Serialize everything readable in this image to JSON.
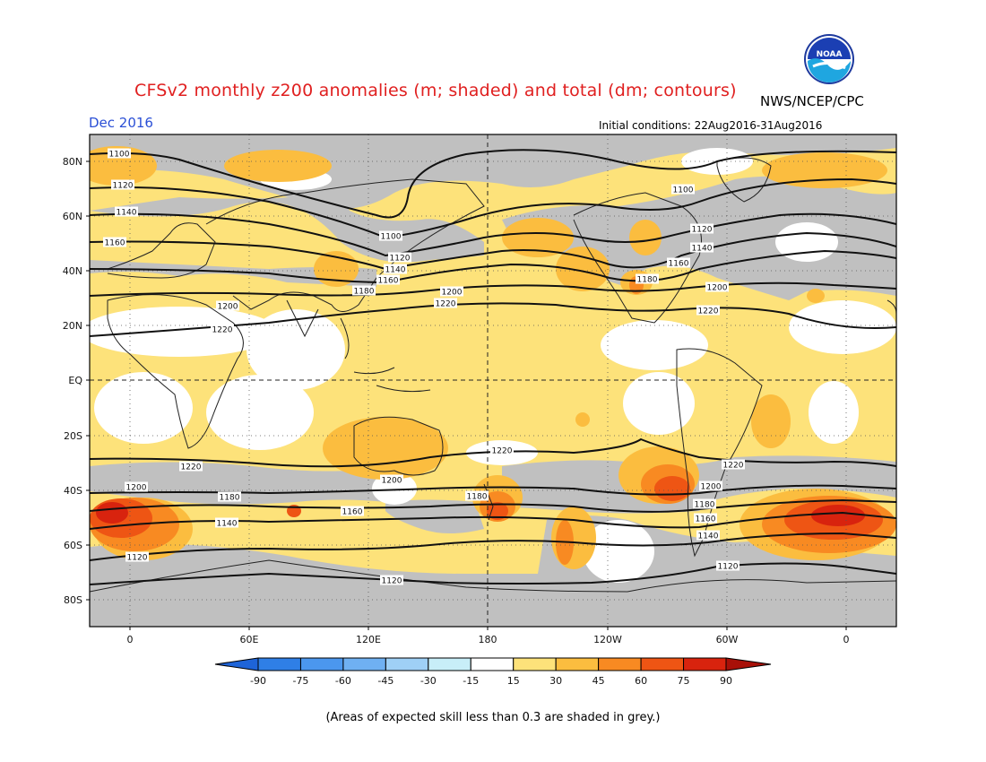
{
  "header": {
    "title": "CFSv2 monthly z200 anomalies (m; shaded) and total (dm; contours)",
    "agency": "NWS/NCEP/CPC",
    "period": "Dec 2016",
    "initial_conditions": "Initial conditions: 22Aug2016-31Aug2016",
    "logo_text": "NOAA"
  },
  "map": {
    "lat_labels": [
      "80N",
      "60N",
      "40N",
      "20N",
      "EQ",
      "20S",
      "40S",
      "60S",
      "80S"
    ],
    "lon_labels": [
      "0",
      "60E",
      "120E",
      "180",
      "120W",
      "60W",
      "0"
    ],
    "contour_labels": [
      "1100",
      "1120",
      "1140",
      "1160",
      "1180",
      "1200",
      "1220"
    ],
    "contour_unit": "dm",
    "anomaly_unit": "m",
    "skill_mask_color": "#c0c0c0",
    "land_outline_color": "#222222"
  },
  "colorbar": {
    "ticks": [
      "-90",
      "-75",
      "-60",
      "-45",
      "-30",
      "-15",
      "15",
      "30",
      "45",
      "60",
      "75",
      "90"
    ],
    "colors": [
      "#1e64d8",
      "#2f7fe6",
      "#4b97ee",
      "#6fb0f2",
      "#9fd0f6",
      "#c8eef8",
      "#ffffff",
      "#fde27a",
      "#fbbd3f",
      "#f88a22",
      "#ee5514",
      "#d8230e",
      "#a81008"
    ]
  },
  "footnote": "(Areas of expected skill less than 0.3 are shaded in grey.)"
}
